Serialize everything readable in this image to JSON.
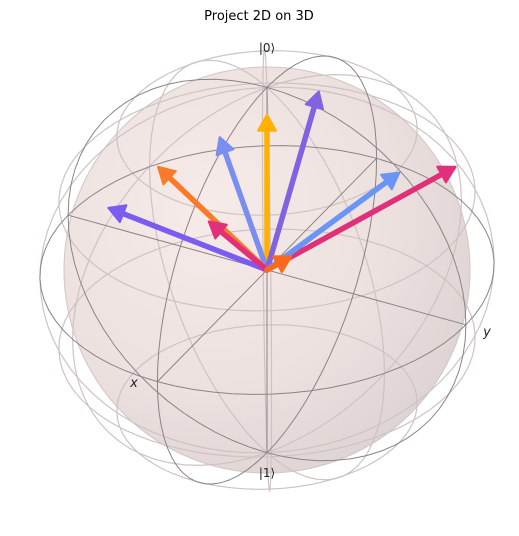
{
  "chart_data": {
    "type": "bloch-sphere",
    "title": "Project 2D on 3D",
    "labels": {
      "top": "|0⟩",
      "bottom": "|1⟩",
      "x": "x",
      "y": "y"
    },
    "vectors": [
      {
        "x": 0.0,
        "y": 0.0,
        "z": 0.85,
        "color": "#ffb000"
      },
      {
        "x": 0.25,
        "y": -0.1,
        "z": 0.85,
        "color": "#7a8df0"
      },
      {
        "x": -0.2,
        "y": 0.15,
        "z": 0.9,
        "color": "#8063e0"
      },
      {
        "x": 0.45,
        "y": -0.3,
        "z": 0.75,
        "color": "#fa7a2a"
      },
      {
        "x": 0.45,
        "y": -0.55,
        "z": 0.45,
        "color": "#7b5cf0"
      },
      {
        "x": 0.35,
        "y": -0.1,
        "z": 0.45,
        "color": "#e0307a"
      },
      {
        "x": -0.45,
        "y": 0.7,
        "z": 0.5,
        "color": "#e0307a"
      },
      {
        "x": -0.3,
        "y": 0.5,
        "z": 0.5,
        "color": "#6b95f5"
      },
      {
        "x": 0.05,
        "y": 0.15,
        "z": 0.15,
        "color": "#fa6a1a"
      }
    ]
  }
}
